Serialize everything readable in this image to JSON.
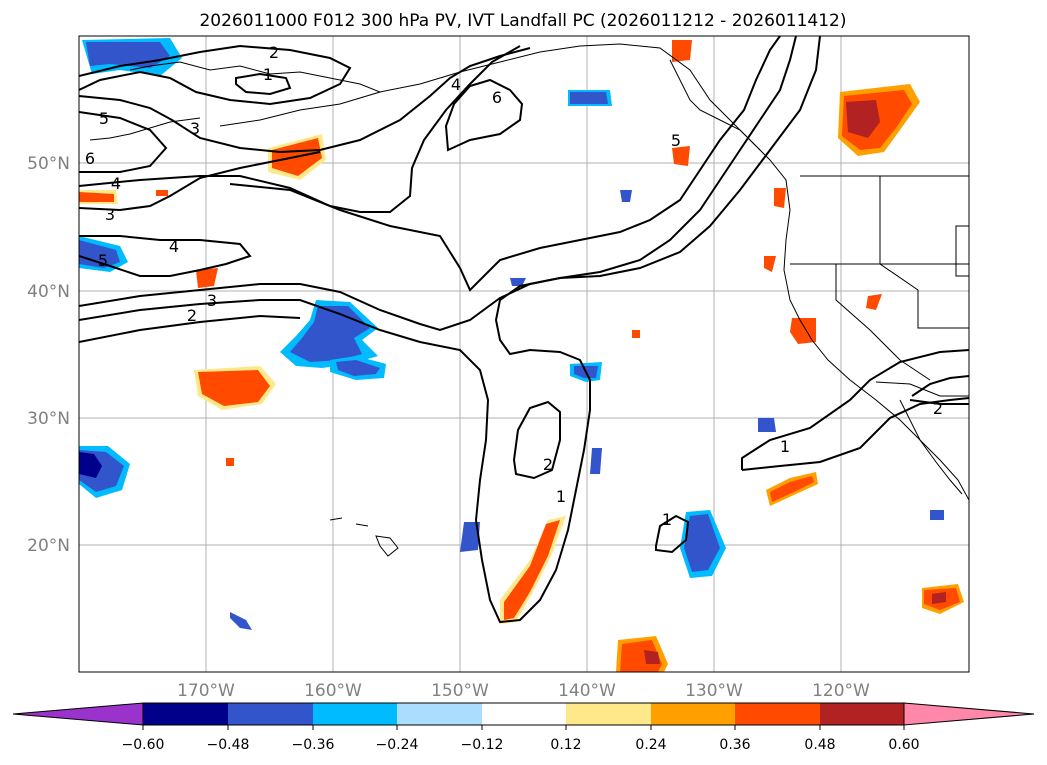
{
  "title": "2026011000 F012 300 hPa PV, IVT Landfall PC (2026011212 - 2026011412)",
  "map": {
    "lon_range": [
      -180,
      -110
    ],
    "lat_range": [
      10,
      60
    ],
    "grid_lons": [
      -170,
      -160,
      -150,
      -140,
      -130,
      -120
    ],
    "grid_lats": [
      20,
      30,
      40,
      50
    ],
    "lon_labels": [
      "170°W",
      "160°W",
      "150°W",
      "140°W",
      "130°W",
      "120°W"
    ],
    "lat_labels": [
      "20°N",
      "30°N",
      "40°N",
      "50°N"
    ],
    "contour_labels": [
      {
        "text": "2"
      },
      {
        "text": "1"
      },
      {
        "text": "4"
      },
      {
        "text": "6"
      },
      {
        "text": "5"
      },
      {
        "text": "3"
      },
      {
        "text": "6"
      },
      {
        "text": "4"
      },
      {
        "text": "3"
      },
      {
        "text": "4"
      },
      {
        "text": "5"
      },
      {
        "text": "3"
      },
      {
        "text": "2"
      },
      {
        "text": "2"
      },
      {
        "text": "1"
      },
      {
        "text": "1"
      },
      {
        "text": "5"
      },
      {
        "text": "1"
      },
      {
        "text": "2"
      }
    ]
  },
  "colorbar": {
    "ticks": [
      "−0.60",
      "−0.48",
      "−0.36",
      "−0.24",
      "−0.12",
      "0.12",
      "0.24",
      "0.36",
      "0.48",
      "0.60"
    ],
    "colors": [
      "#9933cc",
      "#00008b",
      "#3355cc",
      "#00bbff",
      "#aaddff",
      "#ffffff",
      "#ffe88a",
      "#ffa000",
      "#ff4a00",
      "#b22222",
      "#ff88aa"
    ]
  },
  "palette": {
    "neg_dark": "#00008b",
    "neg": "#3355cc",
    "neg_light": "#00bbff",
    "pos_light": "#ffe88a",
    "pos_mid": "#ffa000",
    "pos": "#ff4a00",
    "pos_dark": "#b22222"
  }
}
